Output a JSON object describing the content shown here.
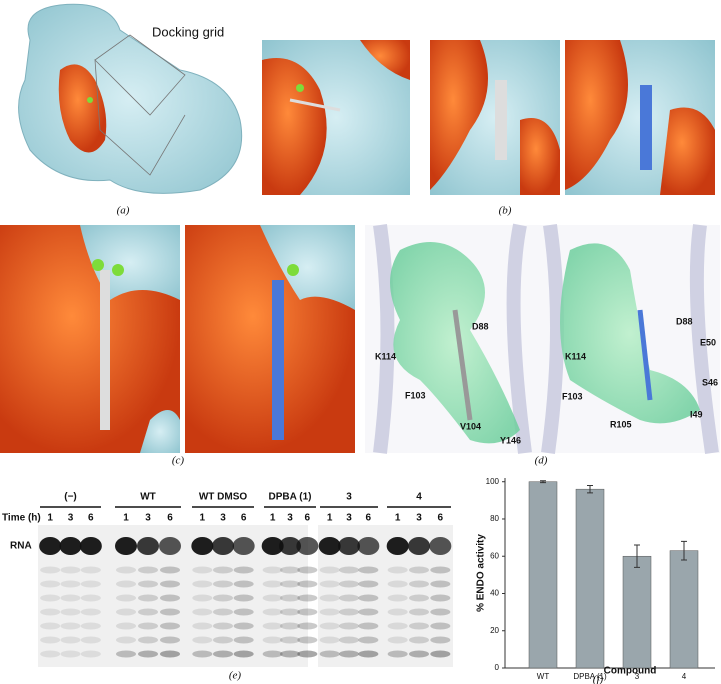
{
  "panel_a": {
    "label": "Docking grid",
    "caption": "(a)"
  },
  "panel_b": {
    "caption": "(b)"
  },
  "panel_c": {
    "caption": "(c)"
  },
  "panel_d": {
    "left_labels": [
      "D88",
      "K114",
      "F103",
      "V104",
      "Y146"
    ],
    "right_labels": [
      "D88",
      "E50",
      "S46",
      "K114",
      "F103",
      "I49",
      "R105"
    ],
    "caption": "(d)"
  },
  "panel_e": {
    "time_label": "Time (h)",
    "row_label": "RNA",
    "groups": [
      {
        "name": "(−)",
        "times": [
          "1",
          "3",
          "6"
        ]
      },
      {
        "name": "WT",
        "times": [
          "1",
          "3",
          "6"
        ]
      },
      {
        "name": "WT DMSO",
        "times": [
          "1",
          "3",
          "6"
        ]
      },
      {
        "name": "DPBA (1)",
        "times": [
          "1",
          "3",
          "6"
        ]
      },
      {
        "name": "3",
        "times": [
          "1",
          "3",
          "6"
        ]
      },
      {
        "name": "4",
        "times": [
          "1",
          "3",
          "6"
        ]
      }
    ],
    "caption": "(e)"
  },
  "chart_data": {
    "type": "bar",
    "categories": [
      "WT",
      "DPBA (1)",
      "3",
      "4"
    ],
    "values": [
      100,
      96,
      60,
      63
    ],
    "errors": [
      0.5,
      2,
      6,
      5
    ],
    "color": "#9aa6ac",
    "ylim": [
      0,
      102
    ],
    "yticks": [
      0,
      20,
      40,
      60,
      80,
      100
    ],
    "y_label": "% ENDO activity",
    "x_label": "Compound",
    "caption": "(f)"
  }
}
